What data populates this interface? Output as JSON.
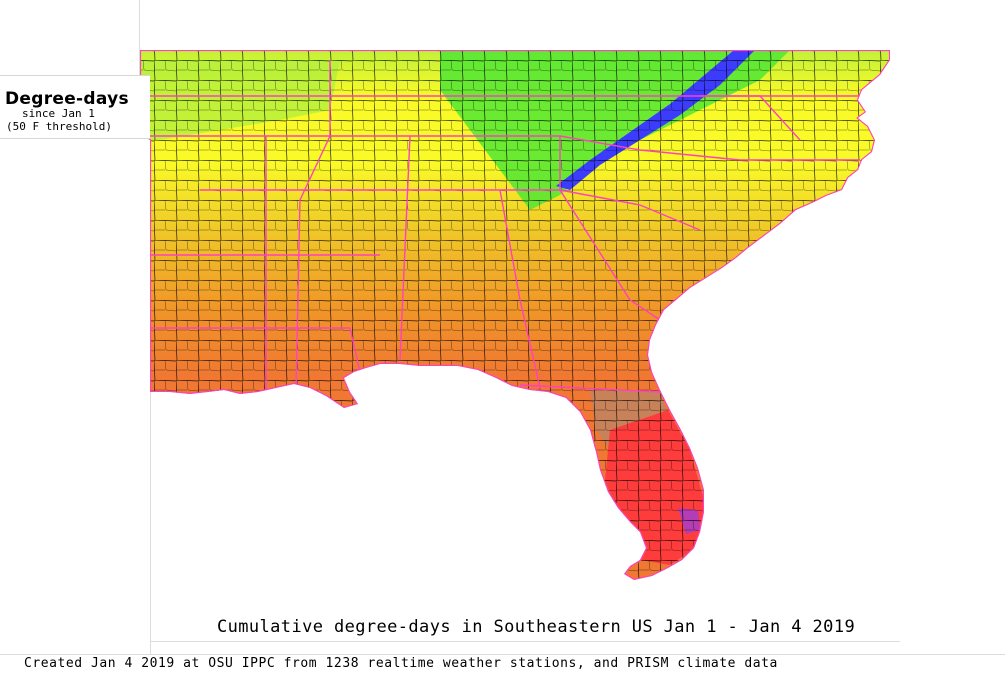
{
  "legend": {
    "title": "Degree-days",
    "subtitle_line1": "since Jan 1",
    "subtitle_line2": "(50 F threshold)"
  },
  "map": {
    "title": "Cumulative degree-days in Southeastern US Jan 1 - Jan 4 2019",
    "region": "Southeastern US",
    "colors": {
      "coldest": "#3c3cff",
      "cool_green": "#50e632",
      "light_green": "#b4f03c",
      "yellow": "#fafa28",
      "yellow_orange": "#f0c828",
      "orange": "#f09628",
      "dark_orange": "#f07832",
      "brown": "#c8825a",
      "red": "#ff3c3c",
      "magenta": "#b43cb4",
      "state_border": "#ff40c0",
      "county_border": "#000000"
    }
  },
  "footer": {
    "credit": "Created Jan 4 2019 at OSU IPPC from 1238 realtime weather stations, and PRISM climate data"
  }
}
